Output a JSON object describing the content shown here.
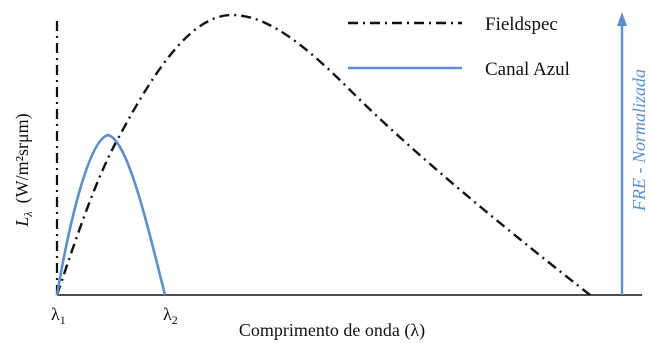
{
  "colors": {
    "axis": "#111111",
    "fieldspec": "#111111",
    "canal_azul": "#5b8fd0",
    "frt_axis": "#5b8fd0"
  },
  "legend": {
    "fieldspec": "Fieldspec",
    "canal_azul": "Canal Azul"
  },
  "y_axis": {
    "symbol": "L",
    "subscript": "λ",
    "units": "(W/m²srμm)"
  },
  "x_axis": {
    "label": "Comprimento de onda (λ)",
    "tick_1": {
      "base": "λ",
      "sub": "1"
    },
    "tick_2": {
      "base": "λ",
      "sub": "2"
    }
  },
  "right_axis": {
    "label": "FRE - Normalizada"
  }
}
